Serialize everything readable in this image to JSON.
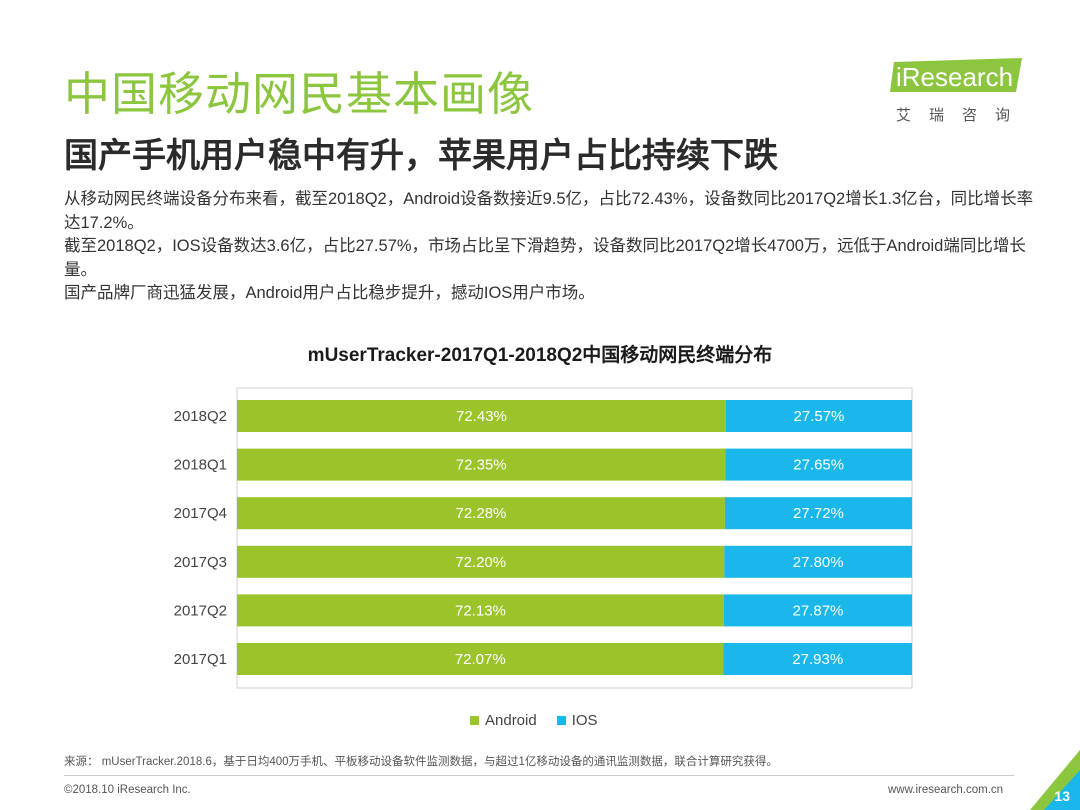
{
  "header": {
    "title": "中国移动网民基本画像",
    "subtitle": "国产手机用户稳中有升，苹果用户占比持续下跌"
  },
  "logo": {
    "brand": "iResearch",
    "brand_cn": "艾瑞咨询"
  },
  "body": {
    "paragraphs": [
      "从移动网民终端设备分布来看，截至2018Q2，Android设备数接近9.5亿，占比72.43%，设备数同比2017Q2增长1.3亿台，同比增长率达17.2%。",
      "截至2018Q2，IOS设备数达3.6亿，占比27.57%，市场占比呈下滑趋势，设备数同比2017Q2增长4700万，远低于Android端同比增长量。",
      "国产品牌厂商迅猛发展，Android用户占比稳步提升，撼动IOS用户市场。"
    ]
  },
  "chart_data": {
    "type": "bar",
    "orientation": "horizontal",
    "stacked": true,
    "title": "mUserTracker-2017Q1-2018Q2中国移动网民终端分布",
    "categories": [
      "2018Q2",
      "2018Q1",
      "2017Q4",
      "2017Q3",
      "2017Q2",
      "2017Q1"
    ],
    "series": [
      {
        "name": "Android",
        "color": "#9bc42a",
        "values": [
          72.43,
          72.35,
          72.28,
          72.2,
          72.13,
          72.07
        ],
        "labels": [
          "72.43%",
          "72.35%",
          "72.28%",
          "72.20%",
          "72.13%",
          "72.07%"
        ]
      },
      {
        "name": "IOS",
        "color": "#1ab7ea",
        "values": [
          27.57,
          27.65,
          27.72,
          27.8,
          27.87,
          27.93
        ],
        "labels": [
          "27.57%",
          "27.65%",
          "27.72%",
          "27.80%",
          "27.87%",
          "27.93%"
        ]
      }
    ],
    "xlim": [
      0,
      100
    ],
    "legend": "bottom-center",
    "grid": false
  },
  "footer": {
    "source": "来源： mUserTracker.2018.6，基于日均400万手机、平板移动设备软件监测数据，与超过1亿移动设备的通讯监测数据，联合计算研究获得。",
    "copyright": "©2018.10 iResearch Inc.",
    "website": "www.iresearch.com.cn",
    "page_number": "13"
  },
  "colors": {
    "accent_green": "#8cc63f",
    "android": "#9bc42a",
    "ios": "#1ab7ea"
  }
}
